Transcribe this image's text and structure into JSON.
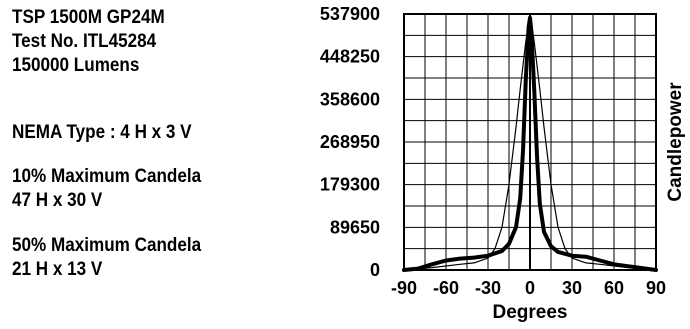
{
  "info": {
    "product": "TSP 1500M GP24M",
    "test_no": "Test No. ITL45284",
    "lumens": "150000 Lumens",
    "nema": "NEMA Type : 4 H x 3 V",
    "max10_label": "10% Maximum Candela",
    "max10_value": "47  H x 30  V",
    "max50_label": "50% Maximum Candela",
    "max50_value": "21  H x 13  V"
  },
  "chart_data": {
    "type": "line",
    "title": "",
    "xlabel": "Degrees",
    "ylabel": "Candlepower",
    "xlim": [
      -90,
      90
    ],
    "ylim": [
      0,
      537900
    ],
    "xticks": [
      -90,
      -60,
      -30,
      0,
      30,
      60,
      90
    ],
    "yticks": [
      0,
      89650,
      179300,
      268950,
      358600,
      448250,
      537900
    ],
    "grid": true,
    "legend": "none",
    "series": [
      {
        "style": "thick",
        "x": [
          -90,
          -80,
          -70,
          -60,
          -50,
          -40,
          -30,
          -20,
          -15,
          -10,
          -7,
          -5,
          -3,
          -1,
          0,
          1,
          3,
          5,
          7,
          10,
          15,
          20,
          30,
          40,
          50,
          60,
          70,
          80,
          90
        ],
        "y": [
          0,
          3000,
          12000,
          20000,
          24000,
          26000,
          30000,
          40000,
          55000,
          90000,
          150000,
          250000,
          400000,
          510000,
          530000,
          500000,
          380000,
          240000,
          140000,
          80000,
          50000,
          38000,
          30000,
          28000,
          20000,
          12000,
          8000,
          4000,
          0
        ]
      },
      {
        "style": "thin",
        "x": [
          -90,
          -70,
          -50,
          -40,
          -30,
          -25,
          -20,
          -15,
          -10,
          -7,
          -5,
          -3,
          0,
          3,
          5,
          7,
          10,
          15,
          20,
          25,
          30,
          40,
          50,
          70,
          90
        ],
        "y": [
          0,
          5000,
          12000,
          15000,
          25000,
          45000,
          90000,
          180000,
          300000,
          380000,
          430000,
          480000,
          537900,
          480000,
          430000,
          380000,
          300000,
          180000,
          90000,
          45000,
          25000,
          15000,
          12000,
          5000,
          0
        ]
      }
    ]
  }
}
